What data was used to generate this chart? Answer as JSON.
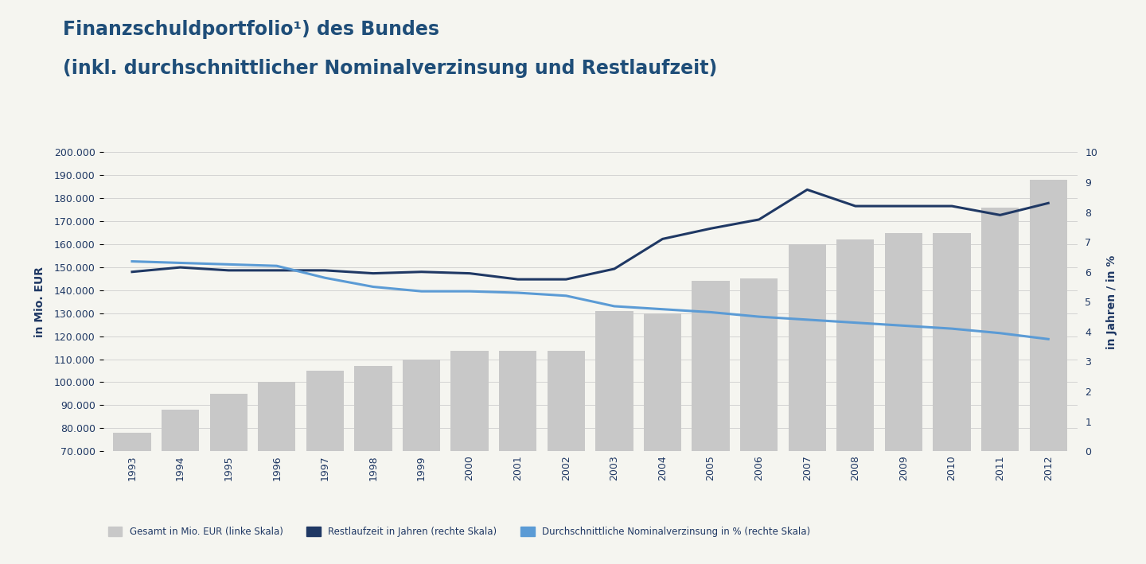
{
  "title_line1": "Finanzschuldportfolio¹) des Bundes",
  "title_line2": "(inkl. durchschnittlicher Nominalverzinsung und Restlaufzeit)",
  "title_color": "#1f4e79",
  "years": [
    1993,
    1994,
    1995,
    1996,
    1997,
    1998,
    1999,
    2000,
    2001,
    2002,
    2003,
    2004,
    2005,
    2006,
    2007,
    2008,
    2009,
    2010,
    2011,
    2012
  ],
  "bar_values": [
    78000,
    88000,
    95000,
    100000,
    105000,
    107000,
    110000,
    113500,
    113500,
    113500,
    131000,
    130000,
    144000,
    145000,
    160000,
    162000,
    165000,
    165000,
    176000,
    188000
  ],
  "restlaufzeit": [
    6.0,
    6.15,
    6.05,
    6.05,
    6.05,
    5.95,
    6.0,
    5.95,
    5.75,
    5.75,
    6.1,
    7.1,
    7.45,
    7.75,
    8.75,
    8.2,
    8.2,
    8.2,
    7.9,
    8.3
  ],
  "nominalverzinsung": [
    6.35,
    6.3,
    6.25,
    6.2,
    5.8,
    5.5,
    5.35,
    5.35,
    5.3,
    5.2,
    4.85,
    4.75,
    4.65,
    4.5,
    4.4,
    4.3,
    4.2,
    4.1,
    3.95,
    3.75
  ],
  "bar_color": "#c8c8c8",
  "restlaufzeit_color": "#1f3864",
  "nominalverzinsung_color": "#5b9bd5",
  "ylim_left": [
    70000,
    200000
  ],
  "ylim_right": [
    0,
    10
  ],
  "yticks_left": [
    70000,
    80000,
    90000,
    100000,
    110000,
    120000,
    130000,
    140000,
    150000,
    160000,
    170000,
    180000,
    190000,
    200000
  ],
  "yticks_right": [
    0,
    1,
    2,
    3,
    4,
    5,
    6,
    7,
    8,
    9,
    10
  ],
  "ylabel_left": "in Mio. EUR",
  "ylabel_right": "in Jahren / in %",
  "grid_color": "#d3d3d3",
  "background_color": "#f5f5f0",
  "legend_bar": "Gesamt in Mio. EUR (linke Skala)",
  "legend_restlaufzeit": "Restlaufzeit in Jahren (rechte Skala)",
  "legend_nominalverzinsung": "Durchschnittliche Nominalverzinsung in % (rechte Skala)"
}
